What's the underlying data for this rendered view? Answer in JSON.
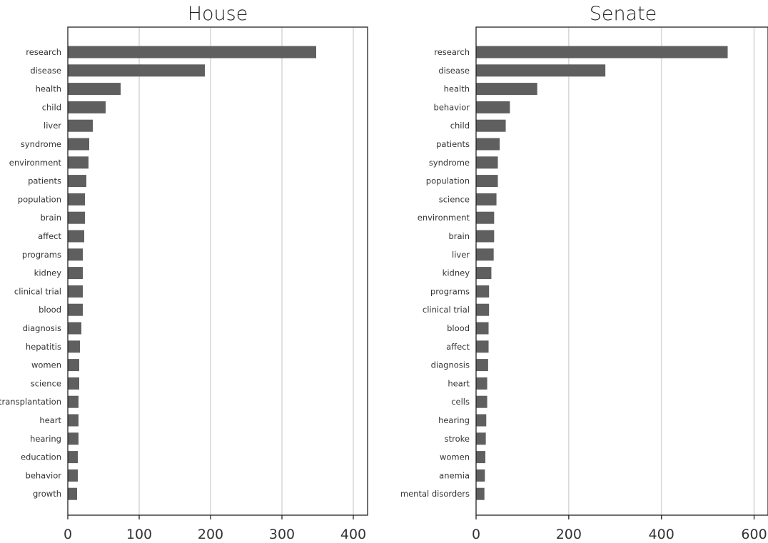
{
  "chart_data": [
    {
      "type": "bar",
      "orientation": "horizontal",
      "title": "House",
      "xlabel": "",
      "ylabel": "",
      "xlim": [
        0,
        420
      ],
      "xticks": [
        0,
        100,
        200,
        300,
        400
      ],
      "grid": "vertical",
      "categories": [
        "research",
        "disease",
        "health",
        "child",
        "liver",
        "syndrome",
        "environment",
        "patients",
        "population",
        "brain",
        "affect",
        "programs",
        "kidney",
        "clinical trial",
        "blood",
        "diagnosis",
        "hepatitis",
        "women",
        "science",
        "transplantation",
        "heart",
        "hearing",
        "education",
        "behavior",
        "growth"
      ],
      "values": [
        348,
        192,
        74,
        53,
        35,
        30,
        29,
        26,
        24,
        24,
        23,
        21,
        21,
        21,
        21,
        19,
        17,
        16,
        16,
        15,
        15,
        15,
        14,
        14,
        13
      ],
      "color": "#5f5f5f"
    },
    {
      "type": "bar",
      "orientation": "horizontal",
      "title": "Senate",
      "xlabel": "",
      "ylabel": "",
      "xlim": [
        0,
        630
      ],
      "xticks": [
        0,
        200,
        400,
        600
      ],
      "grid": "vertical",
      "categories": [
        "research",
        "disease",
        "health",
        "behavior",
        "child",
        "patients",
        "syndrome",
        "population",
        "science",
        "environment",
        "brain",
        "liver",
        "kidney",
        "programs",
        "clinical trial",
        "blood",
        "affect",
        "diagnosis",
        "heart",
        "cells",
        "hearing",
        "stroke",
        "women",
        "anemia",
        "mental disorders"
      ],
      "values": [
        543,
        279,
        132,
        73,
        64,
        51,
        47,
        47,
        44,
        39,
        39,
        38,
        33,
        28,
        28,
        27,
        27,
        26,
        24,
        24,
        22,
        21,
        20,
        19,
        18
      ],
      "color": "#5f5f5f"
    }
  ]
}
